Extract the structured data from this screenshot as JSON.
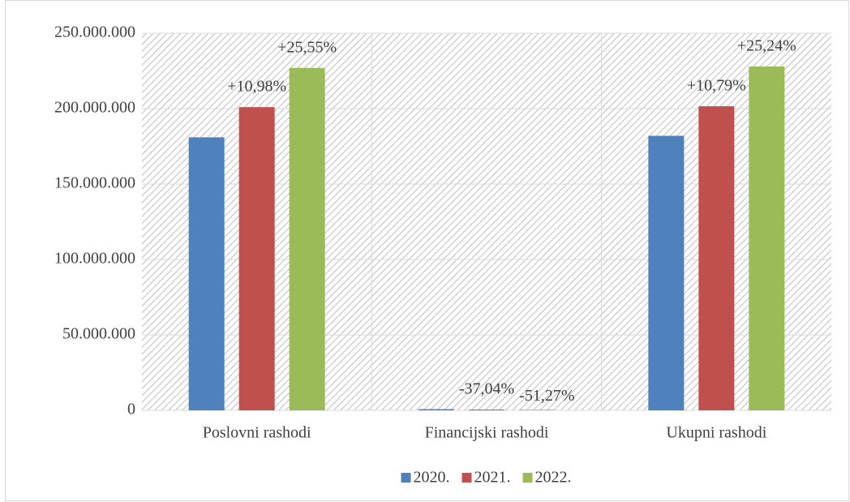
{
  "chart_data": {
    "type": "bar",
    "categories": [
      "Poslovni rashodi",
      "Financijski rashodi",
      "Ukupni rashodi"
    ],
    "series": [
      {
        "name": "2020.",
        "color": "#4f81bd",
        "values": [
          181000000,
          800000,
          182000000
        ],
        "annotations": [
          null,
          null,
          null
        ]
      },
      {
        "name": "2021.",
        "color": "#c0504d",
        "values": [
          201000000,
          500000,
          201600000
        ],
        "annotations": [
          "+10,98%",
          "-37,04%",
          "+10,79%"
        ]
      },
      {
        "name": "2022.",
        "color": "#9bbb59",
        "values": [
          227000000,
          390000,
          228000000
        ],
        "annotations": [
          "+25,55%",
          "-51,27%",
          "+25,24%"
        ]
      }
    ],
    "ylim": [
      0,
      250000000
    ],
    "yticks": [
      0,
      {
        "value": 50000000,
        "label": "50.000.000"
      },
      {
        "value": 100000000,
        "label": "100.000.000"
      },
      {
        "value": 150000000,
        "label": "150.000.000"
      },
      {
        "value": 200000000,
        "label": "200.000.000"
      },
      {
        "value": 250000000,
        "label": "250.000.000"
      }
    ],
    "grid": true,
    "legend": "bottom"
  }
}
